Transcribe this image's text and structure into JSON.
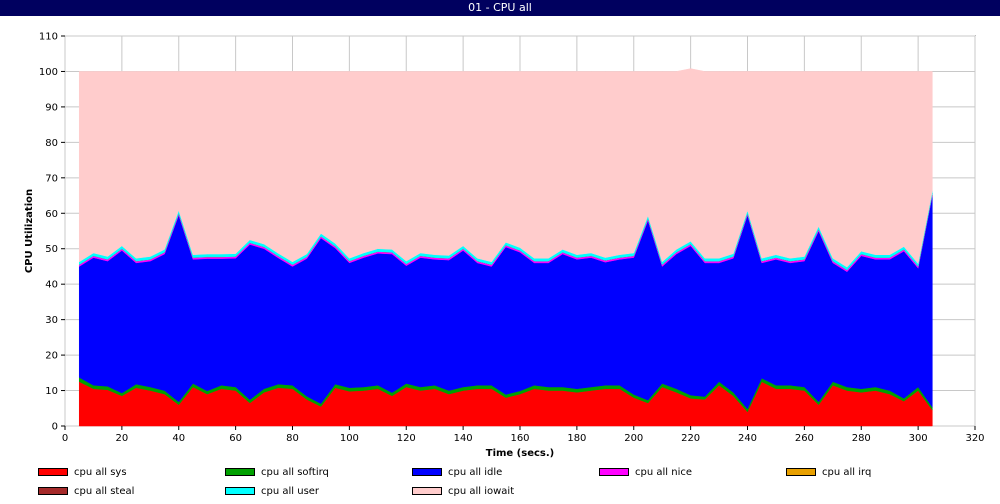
{
  "window": {
    "title": "01 - CPU all"
  },
  "chart_data": {
    "type": "area",
    "stacked": true,
    "title": "",
    "xlabel": "Time (secs.)",
    "ylabel": "CPU Utilization",
    "xlim": [
      0,
      320
    ],
    "ylim": [
      0,
      110
    ],
    "xticks": [
      0,
      20,
      40,
      60,
      80,
      100,
      120,
      140,
      160,
      180,
      200,
      220,
      240,
      260,
      280,
      300,
      320
    ],
    "yticks": [
      0,
      10,
      20,
      30,
      40,
      50,
      60,
      70,
      80,
      90,
      100,
      110
    ],
    "grid": true,
    "legend_position": "bottom",
    "x": [
      5,
      10,
      15,
      20,
      25,
      30,
      35,
      40,
      45,
      50,
      55,
      60,
      65,
      70,
      75,
      80,
      85,
      90,
      95,
      100,
      105,
      110,
      115,
      120,
      125,
      130,
      135,
      140,
      145,
      150,
      155,
      160,
      165,
      170,
      175,
      180,
      185,
      190,
      195,
      200,
      205,
      210,
      215,
      220,
      225,
      230,
      235,
      240,
      245,
      250,
      255,
      260,
      265,
      270,
      275,
      280,
      285,
      290,
      295,
      300,
      305
    ],
    "series": [
      {
        "name": "cpu all sys",
        "color": "#ff0000",
        "values": [
          12.5,
          10.5,
          10.2,
          8.5,
          10.8,
          10.0,
          9.0,
          6.0,
          11.0,
          9.0,
          10.5,
          10.0,
          6.5,
          9.5,
          10.8,
          10.5,
          7.5,
          5.5,
          10.8,
          9.8,
          10.0,
          10.5,
          8.5,
          11.0,
          10.0,
          10.5,
          9.0,
          10.0,
          10.5,
          10.5,
          8.0,
          9.0,
          10.5,
          10.0,
          10.0,
          9.5,
          10.0,
          10.5,
          10.5,
          8.0,
          6.5,
          11.0,
          9.5,
          7.8,
          7.5,
          11.5,
          8.5,
          4.0,
          12.5,
          10.5,
          10.5,
          10.0,
          6.0,
          11.5,
          10.0,
          9.5,
          10.0,
          9.0,
          7.0,
          10.0,
          4.5
        ]
      },
      {
        "name": "cpu all softirq",
        "color": "#00a000",
        "values": [
          1.2,
          1.0,
          1.0,
          0.8,
          1.0,
          1.0,
          1.0,
          0.8,
          1.0,
          0.9,
          1.0,
          1.0,
          0.9,
          1.0,
          1.0,
          1.0,
          0.9,
          0.8,
          1.0,
          1.0,
          1.0,
          1.0,
          0.9,
          1.0,
          1.0,
          1.0,
          1.0,
          1.0,
          1.0,
          1.0,
          0.9,
          0.9,
          1.0,
          1.0,
          1.0,
          1.0,
          1.0,
          1.0,
          1.0,
          0.9,
          0.8,
          1.0,
          1.0,
          0.9,
          0.8,
          1.0,
          1.0,
          0.8,
          1.0,
          1.0,
          1.0,
          1.0,
          0.8,
          1.0,
          1.0,
          1.0,
          1.0,
          1.0,
          0.8,
          1.0,
          0.8
        ]
      },
      {
        "name": "cpu all idle",
        "color": "#0000ff",
        "values": [
          31.3,
          36.0,
          35.3,
          40.2,
          34.2,
          35.5,
          38.5,
          52.7,
          35.0,
          37.3,
          35.7,
          36.3,
          43.8,
          39.5,
          35.6,
          33.5,
          38.8,
          46.7,
          38.4,
          35.2,
          36.5,
          37.2,
          39.1,
          33.2,
          36.5,
          35.5,
          36.8,
          38.5,
          34.5,
          33.5,
          41.6,
          39.1,
          34.5,
          35.0,
          37.5,
          36.5,
          36.5,
          34.7,
          35.5,
          38.6,
          50.7,
          33.0,
          38.0,
          42.1,
          37.7,
          33.5,
          37.8,
          54.7,
          32.5,
          35.5,
          34.5,
          35.5,
          48.2,
          33.5,
          32.5,
          37.5,
          36.0,
          37.0,
          41.5,
          33.5,
          59.7
        ]
      },
      {
        "name": "cpu all nice",
        "color": "#ff00ff",
        "values": [
          0.5,
          0.5,
          0.5,
          0.5,
          0.5,
          0.5,
          0.5,
          0.5,
          0.5,
          0.5,
          0.5,
          0.5,
          0.5,
          0.5,
          0.5,
          0.5,
          0.5,
          0.5,
          0.5,
          0.5,
          0.5,
          0.5,
          0.5,
          0.5,
          0.5,
          0.5,
          0.5,
          0.5,
          0.5,
          0.5,
          0.5,
          0.5,
          0.5,
          0.5,
          0.5,
          0.5,
          0.5,
          0.5,
          0.5,
          0.5,
          0.5,
          0.5,
          0.5,
          0.5,
          0.5,
          0.5,
          0.5,
          0.5,
          0.5,
          0.5,
          0.5,
          0.5,
          0.5,
          0.5,
          0.5,
          0.5,
          0.5,
          0.5,
          0.5,
          0.5,
          0.5
        ]
      },
      {
        "name": "cpu all irq",
        "color": "#e8a000",
        "values": [
          0,
          0,
          0,
          0,
          0,
          0,
          0,
          0,
          0,
          0,
          0,
          0,
          0,
          0,
          0,
          0,
          0,
          0,
          0,
          0,
          0,
          0,
          0,
          0,
          0,
          0,
          0,
          0,
          0,
          0,
          0,
          0,
          0,
          0,
          0,
          0,
          0,
          0,
          0,
          0,
          0,
          0,
          0,
          0,
          0,
          0,
          0,
          0,
          0,
          0,
          0,
          0,
          0,
          0,
          0,
          0,
          0,
          0,
          0,
          0,
          0
        ]
      },
      {
        "name": "cpu all steal",
        "color": "#a52a2a",
        "values": [
          0,
          0,
          0,
          0,
          0,
          0,
          0,
          0,
          0,
          0,
          0,
          0,
          0,
          0,
          0,
          0,
          0,
          0,
          0,
          0,
          0,
          0,
          0,
          0,
          0,
          0,
          0,
          0,
          0,
          0,
          0,
          0,
          0,
          0,
          0,
          0,
          0,
          0,
          0,
          0,
          0,
          0,
          0,
          0,
          0,
          0,
          0,
          0,
          0,
          0,
          0,
          0,
          0,
          0,
          0,
          0,
          0,
          0,
          0,
          0,
          0
        ]
      },
      {
        "name": "cpu all user",
        "color": "#00ffff",
        "values": [
          0.8,
          0.8,
          0.8,
          0.8,
          0.8,
          0.8,
          0.8,
          0.8,
          0.8,
          0.8,
          0.8,
          0.8,
          0.8,
          0.8,
          0.8,
          0.8,
          0.8,
          0.8,
          0.8,
          0.8,
          0.8,
          0.8,
          0.8,
          0.8,
          0.8,
          0.8,
          0.8,
          0.8,
          0.8,
          0.8,
          0.8,
          0.8,
          0.8,
          0.8,
          0.8,
          0.8,
          0.8,
          0.8,
          0.8,
          0.8,
          0.8,
          0.8,
          0.8,
          0.8,
          0.8,
          0.8,
          0.8,
          0.8,
          0.8,
          0.8,
          0.8,
          0.8,
          0.8,
          0.8,
          0.8,
          0.8,
          0.8,
          0.8,
          0.8,
          0.8,
          0.8
        ]
      },
      {
        "name": "cpu all iowait",
        "color": "#ffcccc",
        "values": [
          53.7,
          51.2,
          52.2,
          49.2,
          52.7,
          52.2,
          50.2,
          39.2,
          51.7,
          51.5,
          51.5,
          51.4,
          47.5,
          48.7,
          51.3,
          53.7,
          51.5,
          45.7,
          48.5,
          52.7,
          51.2,
          50.0,
          50.2,
          53.5,
          51.2,
          51.7,
          51.9,
          49.2,
          52.7,
          53.7,
          48.2,
          49.7,
          52.7,
          52.7,
          50.2,
          51.7,
          51.2,
          52.5,
          51.7,
          51.2,
          40.7,
          53.7,
          50.2,
          48.7,
          52.7,
          52.7,
          51.4,
          39.2,
          52.7,
          51.7,
          52.7,
          52.2,
          43.7,
          52.7,
          55.2,
          50.7,
          51.7,
          51.7,
          49.4,
          54.2,
          33.7
        ]
      }
    ]
  }
}
